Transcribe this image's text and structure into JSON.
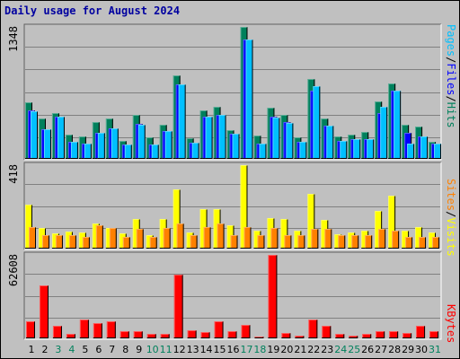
{
  "title": "Daily usage for August 2024",
  "colors": {
    "background": "#c0c0c0",
    "plot": "#c0c0c0",
    "hits": "#00805c",
    "files": "#0000ff",
    "pages": "#00c0ff",
    "visits": "#ffff00",
    "sites": "#ff8000",
    "kbytes": "#ff0000",
    "weekend_day": "#00805c",
    "weekday": "#000000"
  },
  "chart_data": [
    {
      "type": "bar",
      "name": "hits-files-pages",
      "categories": [
        "1",
        "2",
        "3",
        "4",
        "5",
        "6",
        "7",
        "8",
        "9",
        "10",
        "11",
        "12",
        "13",
        "14",
        "15",
        "16",
        "17",
        "18",
        "19",
        "20",
        "21",
        "22",
        "23",
        "24",
        "25",
        "26",
        "27",
        "28",
        "29",
        "30",
        "31"
      ],
      "weekend_days": [
        "3",
        "4",
        "10",
        "11",
        "17",
        "18",
        "24",
        "25",
        "31"
      ],
      "ylim": [
        0,
        1348
      ],
      "max_label": "1348",
      "series": [
        {
          "name": "Hits",
          "values": [
            575,
            416,
            465,
            247,
            230,
            375,
            410,
            185,
            446,
            220,
            350,
            855,
            208,
            497,
            530,
            295,
            1348,
            240,
            522,
            453,
            221,
            815,
            409,
            230,
            245,
            273,
            583,
            773,
            350,
            330,
            171
          ]
        },
        {
          "name": "Files",
          "values": [
            495,
            305,
            430,
            170,
            160,
            268,
            315,
            145,
            355,
            150,
            280,
            760,
            165,
            430,
            450,
            260,
            1220,
            160,
            430,
            375,
            170,
            700,
            340,
            180,
            200,
            200,
            470,
            700,
            270,
            225,
            155
          ]
        },
        {
          "name": "Pages",
          "values": [
            490,
            300,
            430,
            170,
            160,
            268,
            315,
            145,
            345,
            150,
            280,
            760,
            165,
            430,
            450,
            260,
            1220,
            160,
            420,
            365,
            170,
            740,
            340,
            180,
            200,
            200,
            530,
            700,
            160,
            225,
            155
          ]
        }
      ]
    },
    {
      "type": "bar",
      "name": "visits-sites",
      "categories": [
        "1",
        "2",
        "3",
        "4",
        "5",
        "6",
        "7",
        "8",
        "9",
        "10",
        "11",
        "12",
        "13",
        "14",
        "15",
        "16",
        "17",
        "18",
        "19",
        "20",
        "21",
        "22",
        "23",
        "24",
        "25",
        "26",
        "27",
        "28",
        "29",
        "30",
        "31"
      ],
      "ylim": [
        0,
        418
      ],
      "max_label": "418",
      "series": [
        {
          "name": "Visits",
          "values": [
            218,
            104,
            76,
            85,
            82,
            125,
            104,
            75,
            149,
            69,
            147,
            298,
            80,
            197,
            197,
            115,
            418,
            90,
            152,
            150,
            90,
            275,
            146,
            73,
            80,
            90,
            190,
            263,
            90,
            110,
            80
          ]
        },
        {
          "name": "Sites",
          "values": [
            110,
            68,
            68,
            68,
            60,
            118,
            104,
            60,
            99,
            60,
            104,
            127,
            68,
            110,
            127,
            68,
            110,
            68,
            104,
            68,
            68,
            99,
            99,
            68,
            68,
            68,
            99,
            89,
            60,
            60,
            60
          ]
        }
      ]
    },
    {
      "type": "bar",
      "name": "kbytes",
      "categories": [
        "1",
        "2",
        "3",
        "4",
        "5",
        "6",
        "7",
        "8",
        "9",
        "10",
        "11",
        "12",
        "13",
        "14",
        "15",
        "16",
        "17",
        "18",
        "19",
        "20",
        "21",
        "22",
        "23",
        "24",
        "25",
        "26",
        "27",
        "28",
        "29",
        "30",
        "31"
      ],
      "ylim": [
        0,
        62608
      ],
      "max_label": "62608",
      "series": [
        {
          "name": "KBytes",
          "values": [
            12500,
            39600,
            9300,
            3100,
            14300,
            11400,
            12500,
            5500,
            5500,
            3100,
            3100,
            47900,
            6300,
            5000,
            12500,
            5500,
            10400,
            1200,
            62608,
            3900,
            2300,
            14300,
            9300,
            3100,
            2300,
            3100,
            5500,
            5500,
            3900,
            9300,
            5500
          ]
        }
      ]
    }
  ],
  "legend": {
    "top": [
      {
        "text": "Pages",
        "color": "#00c0ff"
      },
      {
        "text": "Files",
        "color": "#0000ff"
      },
      {
        "text": "Hits",
        "color": "#00805c"
      }
    ],
    "mid": [
      {
        "text": "Sites",
        "color": "#ff8000"
      },
      {
        "text": "Visits",
        "color": "#ffff00"
      }
    ],
    "bottom": [
      {
        "text": "KBytes",
        "color": "#ff0000"
      }
    ],
    "separator": "/"
  }
}
